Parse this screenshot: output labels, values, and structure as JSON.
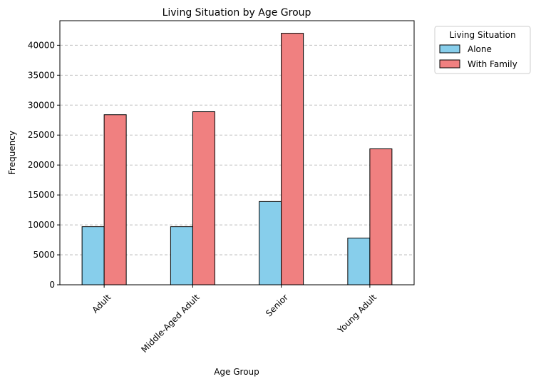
{
  "chart_data": {
    "type": "bar",
    "title": "Living Situation by Age Group",
    "xlabel": "Age Group",
    "ylabel": "Frequency",
    "categories": [
      "Adult",
      "Middle-Aged Adult",
      "Senior",
      "Young Adult"
    ],
    "series": [
      {
        "name": "Alone",
        "color": "#87ceeb",
        "values": [
          9700,
          9700,
          13900,
          7800
        ]
      },
      {
        "name": "With Family",
        "color": "#f08080",
        "values": [
          28400,
          28900,
          42000,
          22700
        ]
      }
    ],
    "ylim": [
      0,
      44100
    ],
    "yticks": [
      0,
      5000,
      10000,
      15000,
      20000,
      25000,
      30000,
      35000,
      40000
    ],
    "xtick_rotation": 45,
    "grid": {
      "y": true,
      "style": "dashed"
    },
    "legend": {
      "title": "Living Situation",
      "placement": "outside-upper-right"
    }
  }
}
